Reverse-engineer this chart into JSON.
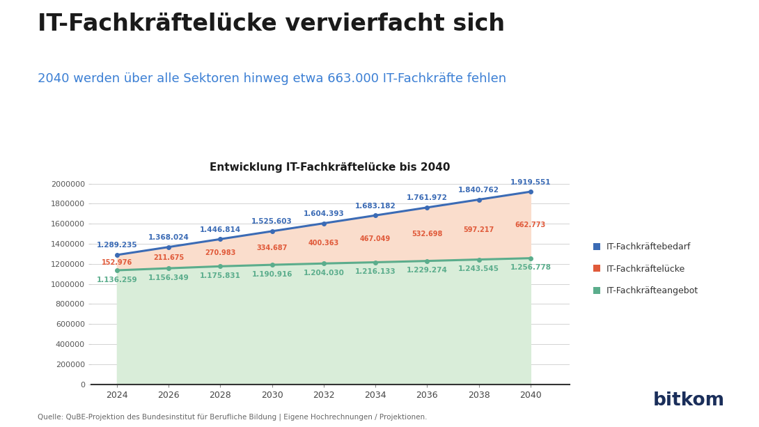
{
  "title_main": "IT-Fachkräftelücke vervierfacht sich",
  "title_sub": "2040 werden über alle Sektoren hinweg etwa 663.000 IT-Fachkräfte fehlen",
  "chart_title": "Entwicklung IT-Fachkräftelücke bis 2040",
  "source": "Quelle: QuBE-Projektion des Bundesinstitut für Berufliche Bildung | Eigene Hochrechnungen / Projektionen.",
  "years": [
    2024,
    2026,
    2028,
    2030,
    2032,
    2034,
    2036,
    2038,
    2040
  ],
  "bedarf": [
    1289235,
    1368024,
    1446814,
    1525603,
    1604393,
    1683182,
    1761972,
    1840762,
    1919551
  ],
  "luecke": [
    152976,
    211675,
    270983,
    334687,
    400363,
    467049,
    532698,
    597217,
    662773
  ],
  "angebot": [
    1136259,
    1156349,
    1175831,
    1190916,
    1204030,
    1216133,
    1229274,
    1243545,
    1256778
  ],
  "bedarf_labels": [
    "1.289.235",
    "1.368.024",
    "1.446.814",
    "1.525.603",
    "1.604.393",
    "1.683.182",
    "1.761.972",
    "1.840.762",
    "1.919.551"
  ],
  "luecke_labels": [
    "152.976",
    "211.675",
    "270.983",
    "334.687",
    "400.363",
    "467.049",
    "532.698",
    "597.217",
    "662.773"
  ],
  "angebot_labels": [
    "1.136.259",
    "1.156.349",
    "1.175.831",
    "1.190.916",
    "1.204.030",
    "1.216.133",
    "1.229.274",
    "1.243.545",
    "1.256.778"
  ],
  "color_bedarf": "#3B6BB5",
  "color_luecke": "#E05A3A",
  "color_angebot": "#5BAD8C",
  "color_fill_luecke": "#FADDCC",
  "color_fill_angebot": "#D9EDD9",
  "color_title_main": "#1a1a1a",
  "color_title_sub": "#3B7FD4",
  "ylim": [
    0,
    2000000
  ],
  "background_color": "#FFFFFF",
  "legend_bedarf": "IT-Fachkräftebedarf",
  "legend_luecke": "IT-Fachkräftelücke",
  "legend_angebot": "IT-Fachkräfteangebot"
}
